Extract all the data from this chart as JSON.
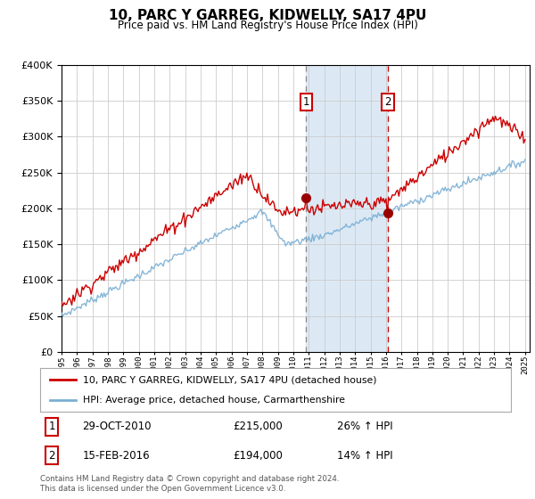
{
  "title": "10, PARC Y GARREG, KIDWELLY, SA17 4PU",
  "subtitle": "Price paid vs. HM Land Registry's House Price Index (HPI)",
  "x_start_year": 1995,
  "x_end_year": 2025,
  "y_min": 0,
  "y_max": 400000,
  "y_ticks": [
    0,
    50000,
    100000,
    150000,
    200000,
    250000,
    300000,
    350000,
    400000
  ],
  "sale1_date": 2010.83,
  "sale1_price": 215000,
  "sale2_date": 2016.12,
  "sale2_price": 194000,
  "red_color": "#cc0000",
  "blue_color": "#7aafd4",
  "shade_color": "#dce9f5",
  "grid_color": "#cccccc",
  "bg_color": "#ffffff",
  "legend_red_label": "10, PARC Y GARREG, KIDWELLY, SA17 4PU (detached house)",
  "legend_blue_label": "HPI: Average price, detached house, Carmarthenshire",
  "footer": "Contains HM Land Registry data © Crown copyright and database right 2024.\nThis data is licensed under the Open Government Licence v3.0.",
  "table_row1": [
    "1",
    "29-OCT-2010",
    "£215,000",
    "26% ↑ HPI"
  ],
  "table_row2": [
    "2",
    "15-FEB-2016",
    "£194,000",
    "14% ↑ HPI"
  ]
}
